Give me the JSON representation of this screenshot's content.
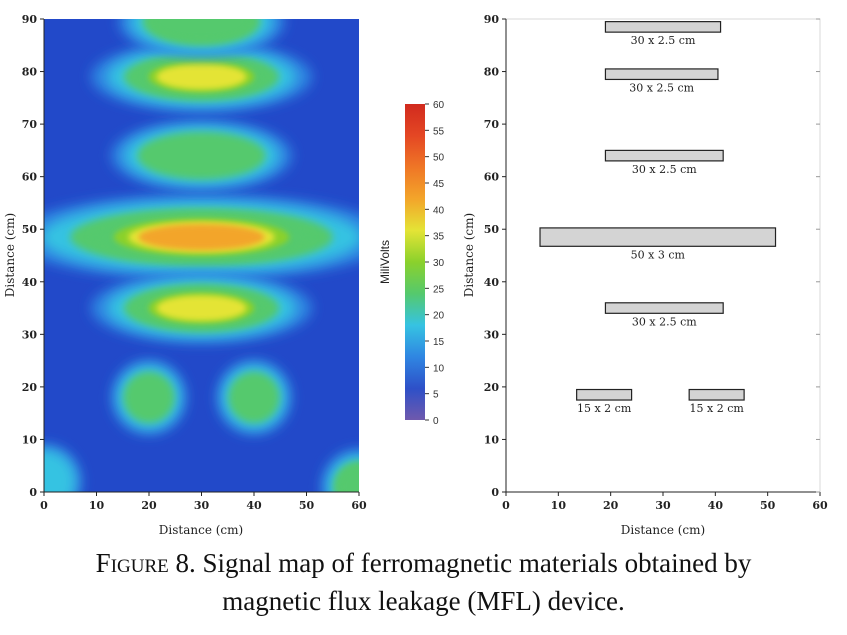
{
  "caption": {
    "label": "Figure 8.",
    "text_line1": "Signal map of ferromagnetic materials obtained by",
    "text_line2": "magnetic flux leakage (MFL) device."
  },
  "chart_data": [
    {
      "type": "heatmap",
      "title": "",
      "xlabel": "Distance (cm)",
      "ylabel": "Distance (cm)",
      "xlim": [
        0,
        60
      ],
      "ylim": [
        0,
        90
      ],
      "xticks": [
        0,
        10,
        20,
        30,
        40,
        50,
        60
      ],
      "yticks": [
        0,
        10,
        20,
        30,
        40,
        50,
        60,
        70,
        80,
        90
      ],
      "colorbar": {
        "label": "MiliVolts",
        "range": [
          0,
          60
        ],
        "ticks": [
          0,
          5,
          10,
          15,
          20,
          25,
          30,
          35,
          40,
          45,
          50,
          55,
          60
        ],
        "colors": [
          "#6f59ad",
          "#2e50c8",
          "#2f86e2",
          "#36c3e2",
          "#55c96d",
          "#8bd12c",
          "#e4e436",
          "#f3a52a",
          "#ef7626",
          "#e44724",
          "#d12a1e"
        ]
      },
      "hotspots": [
        {
          "x": 30,
          "y": 48.5,
          "peak_mV": 42,
          "note": "band"
        },
        {
          "x": 30,
          "y": 35,
          "peak_mV": 38,
          "note": "band"
        },
        {
          "x": 20,
          "y": 18,
          "peak_mV": 24
        },
        {
          "x": 40,
          "y": 18,
          "peak_mV": 24
        },
        {
          "x": 30,
          "y": 64,
          "peak_mV": 22,
          "note": "band"
        },
        {
          "x": 30,
          "y": 79,
          "peak_mV": 38,
          "note": "band"
        },
        {
          "x": 30,
          "y": 89.5,
          "peak_mV": 26,
          "note": "band"
        },
        {
          "x": 0,
          "y": 2,
          "peak_mV": 20
        },
        {
          "x": 60,
          "y": 1,
          "peak_mV": 30
        }
      ]
    },
    {
      "type": "bar",
      "subtype": "horizontal-range",
      "title": "",
      "xlabel": "Distance (cm)",
      "ylabel": "Distance (cm)",
      "xlim": [
        0,
        60
      ],
      "ylim": [
        0,
        90
      ],
      "xticks": [
        0,
        10,
        20,
        30,
        40,
        50,
        60
      ],
      "yticks": [
        0,
        10,
        20,
        30,
        40,
        50,
        60,
        70,
        80,
        90
      ],
      "bars": [
        {
          "label": "30 x 2.5 cm",
          "x0": 19,
          "x1": 41,
          "y": 88.5,
          "height": 2
        },
        {
          "label": "30 x 2.5 cm",
          "x0": 19,
          "x1": 40.5,
          "y": 79.5,
          "height": 2
        },
        {
          "label": "30 x 2.5 cm",
          "x0": 19,
          "x1": 41.5,
          "y": 64,
          "height": 2
        },
        {
          "label": "50 x 3 cm",
          "x0": 6.5,
          "x1": 51.5,
          "y": 48.5,
          "height": 3.5
        },
        {
          "label": "30 x 2.5 cm",
          "x0": 19,
          "x1": 41.5,
          "y": 35,
          "height": 2
        },
        {
          "label": "15 x 2 cm",
          "x0": 13.5,
          "x1": 24,
          "y": 18.5,
          "height": 2
        },
        {
          "label": "15 x 2 cm",
          "x0": 35,
          "x1": 45.5,
          "y": 18.5,
          "height": 2
        }
      ]
    }
  ]
}
